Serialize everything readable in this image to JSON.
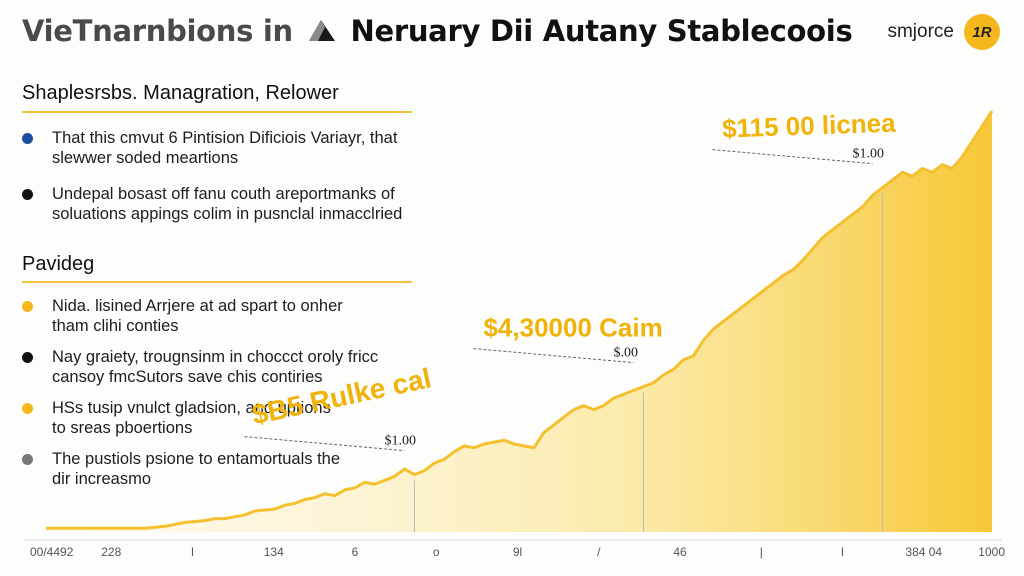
{
  "header": {
    "title_part1": "VieTnarnbions in",
    "title_part2": "Neruary Dii Autany Stablecoois",
    "logo_icon": "mountain-icon",
    "brand_name": "smjorce",
    "brand_badge": "1R"
  },
  "sections": [
    {
      "heading": "Shaplesrsbs. Managration, Relower",
      "items": [
        {
          "line1": "That this cmvut 6 Pintision Dificiois Variayr, that",
          "line2": "slewwer soded meartions",
          "dot_color": "#1f4e9e"
        },
        {
          "line1": "Undepal bosast off fanu couth areportmanks of",
          "line2": "soluations appings colim in pusnclal inmacclried",
          "dot_color": "#111111"
        }
      ]
    },
    {
      "heading": "Pavideg",
      "items": [
        {
          "line1": "Nida. lisined Arrjere at ad spart to onher",
          "line2": "tham clihi conties",
          "dot_color": "#f4b81c"
        },
        {
          "line1": "Nay graiety, trougnsinm in choccct oroly fricc",
          "line2": "cansoy fmcSutors save chis contiries",
          "dot_color": "#111111"
        },
        {
          "line1": "HSs tusip vnulct gladsion, and uptions",
          "line2": "to sreas pboertions",
          "dot_color": "#f4b81c"
        },
        {
          "line1": "The pustiols psione to entamortuals the",
          "line2": "dir increasmo",
          "dot_color": "#777777"
        }
      ]
    }
  ],
  "chart_data": {
    "type": "area",
    "title": "",
    "xlabel": "",
    "ylabel": "",
    "x": [
      0,
      4,
      8,
      12,
      16,
      20,
      22,
      24,
      26,
      28,
      30,
      32,
      34,
      36,
      38,
      40,
      42,
      44,
      46,
      48,
      50,
      52,
      54,
      56,
      58,
      60,
      62,
      64,
      66,
      68,
      70,
      72,
      74,
      76,
      78,
      80,
      82,
      84,
      86,
      88,
      90,
      92,
      94,
      96,
      98,
      100,
      102,
      104,
      106,
      108,
      110,
      112,
      114,
      116,
      118,
      120,
      122,
      124,
      126,
      128,
      130,
      132,
      134,
      136,
      138,
      140,
      142,
      144,
      146,
      148,
      150,
      152,
      154,
      156,
      158,
      160,
      162,
      164,
      166,
      168,
      170,
      172,
      174,
      176,
      178,
      180,
      182,
      184,
      186,
      188,
      190
    ],
    "values": [
      2,
      2,
      2,
      2,
      2,
      2,
      2.5,
      3,
      4,
      5,
      5.5,
      6,
      7,
      7,
      8,
      9,
      11,
      11.5,
      12,
      14,
      15,
      17,
      18,
      20,
      19,
      22,
      23,
      26,
      25,
      27,
      29,
      33,
      30,
      32,
      36,
      38,
      42,
      45,
      44,
      46,
      47,
      48,
      46,
      45,
      44,
      52,
      56,
      60,
      64,
      66,
      64,
      66,
      70,
      72,
      74,
      76,
      78,
      82,
      85,
      90,
      92,
      100,
      106,
      110,
      114,
      118,
      122,
      126,
      130,
      134,
      137,
      142,
      148,
      154,
      158,
      162,
      166,
      170,
      176,
      180,
      184,
      188,
      186,
      190,
      188,
      192,
      190,
      196,
      204,
      212,
      220
    ],
    "ylim": [
      0,
      230
    ],
    "color": "#f4c02e",
    "x_tick_labels": [
      "00/4492",
      "228",
      "l",
      "134",
      "6",
      "o",
      "9l",
      "/",
      "46",
      "|",
      "l",
      "384 04",
      "1000"
    ],
    "annotations": [
      {
        "label": "$B5 Rulke cal",
        "value": "$1.00",
        "x": 74
      },
      {
        "label": "$4,30000 Caim",
        "value": "$.00",
        "x": 120
      },
      {
        "label": "$115 00 licnea",
        "value": "$1.00",
        "x": 168
      }
    ]
  }
}
